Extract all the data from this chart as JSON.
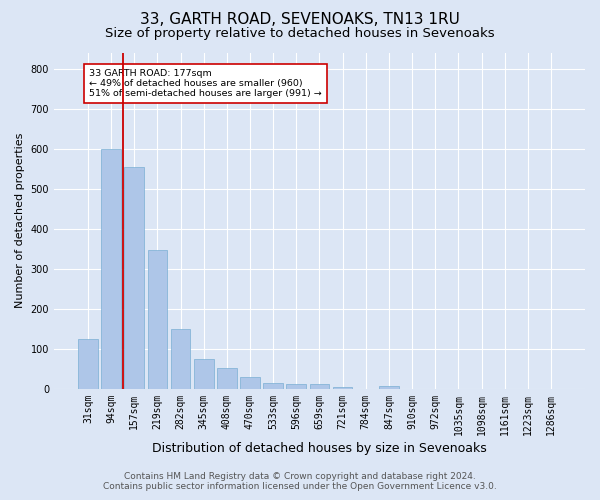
{
  "title": "33, GARTH ROAD, SEVENOAKS, TN13 1RU",
  "subtitle": "Size of property relative to detached houses in Sevenoaks",
  "xlabel": "Distribution of detached houses by size in Sevenoaks",
  "ylabel": "Number of detached properties",
  "categories": [
    "31sqm",
    "94sqm",
    "157sqm",
    "219sqm",
    "282sqm",
    "345sqm",
    "408sqm",
    "470sqm",
    "533sqm",
    "596sqm",
    "659sqm",
    "721sqm",
    "784sqm",
    "847sqm",
    "910sqm",
    "972sqm",
    "1035sqm",
    "1098sqm",
    "1161sqm",
    "1223sqm",
    "1286sqm"
  ],
  "values": [
    125,
    600,
    555,
    347,
    150,
    75,
    52,
    30,
    14,
    13,
    13,
    5,
    0,
    8,
    0,
    0,
    0,
    0,
    0,
    0,
    0
  ],
  "bar_color": "#aec6e8",
  "bar_edge_color": "#7aafd4",
  "highlight_line_color": "#cc0000",
  "annotation_text": "33 GARTH ROAD: 177sqm\n← 49% of detached houses are smaller (960)\n51% of semi-detached houses are larger (991) →",
  "annotation_box_color": "#ffffff",
  "annotation_box_edge": "#cc0000",
  "background_color": "#dce6f5",
  "plot_bg_color": "#dce6f5",
  "ylim": [
    0,
    840
  ],
  "yticks": [
    0,
    100,
    200,
    300,
    400,
    500,
    600,
    700,
    800
  ],
  "footer_line1": "Contains HM Land Registry data © Crown copyright and database right 2024.",
  "footer_line2": "Contains public sector information licensed under the Open Government Licence v3.0.",
  "title_fontsize": 11,
  "subtitle_fontsize": 9.5,
  "xlabel_fontsize": 9,
  "ylabel_fontsize": 8,
  "tick_fontsize": 7,
  "footer_fontsize": 6.5
}
